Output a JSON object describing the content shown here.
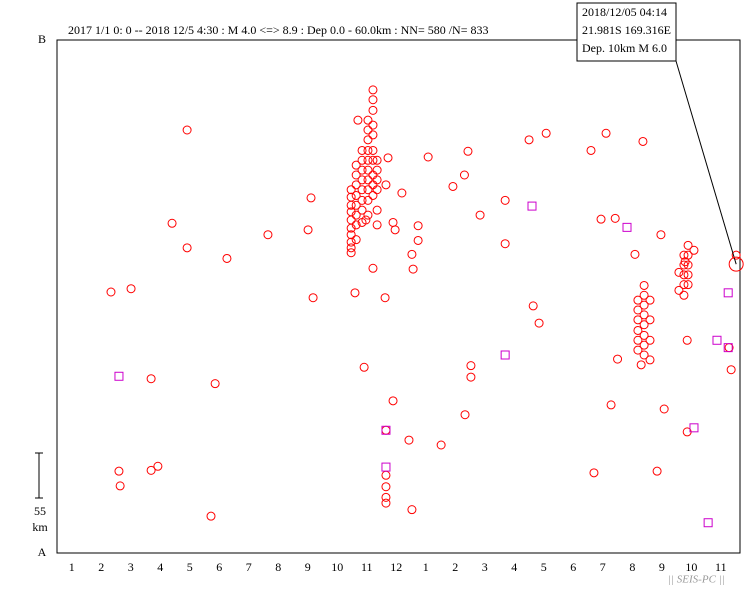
{
  "chart_data": {
    "type": "scatter",
    "title": "2017 1/1 0: 0 -- 2018 12/5 4:30  : M 4.0 <=> 8.9  :  Dep 0.0 - 60.0km :  NN= 580 /N= 833",
    "xlim": [
      0,
      23.15
    ],
    "ylim": [
      0,
      627
    ],
    "xticks": [
      {
        "value": 0.5,
        "label": "1"
      },
      {
        "value": 1.5,
        "label": "2"
      },
      {
        "value": 2.5,
        "label": "3"
      },
      {
        "value": 3.5,
        "label": "4"
      },
      {
        "value": 4.5,
        "label": "5"
      },
      {
        "value": 5.5,
        "label": "6"
      },
      {
        "value": 6.5,
        "label": "7"
      },
      {
        "value": 7.5,
        "label": "8"
      },
      {
        "value": 8.5,
        "label": "9"
      },
      {
        "value": 9.5,
        "label": "10"
      },
      {
        "value": 10.5,
        "label": "11"
      },
      {
        "value": 11.5,
        "label": "12"
      },
      {
        "value": 12.5,
        "label": "1"
      },
      {
        "value": 13.5,
        "label": "2"
      },
      {
        "value": 14.5,
        "label": "3"
      },
      {
        "value": 15.5,
        "label": "4"
      },
      {
        "value": 16.5,
        "label": "5"
      },
      {
        "value": 17.5,
        "label": "6"
      },
      {
        "value": 18.5,
        "label": "7"
      },
      {
        "value": 19.5,
        "label": "8"
      },
      {
        "value": 20.5,
        "label": "9"
      },
      {
        "value": 21.5,
        "label": "10"
      },
      {
        "value": 22.5,
        "label": "11"
      }
    ],
    "yticks": [
      {
        "value": 0,
        "label": "A"
      },
      {
        "value": 627,
        "label": "B"
      }
    ],
    "scale_bar": {
      "value": 55,
      "unit": "km"
    },
    "series": [
      {
        "marker": "circle",
        "color": "#ff0000",
        "x": [
          1.83,
          2.51,
          2.1,
          2.14,
          3.19,
          3.19,
          3.42,
          3.9,
          4.41,
          4.41,
          5.36,
          5.22,
          5.76,
          7.15,
          8.51,
          8.61,
          8.68,
          9.97,
          9.97,
          9.97,
          9.97,
          9.97,
          9.97,
          9.97,
          9.97,
          9.97,
          9.97,
          10.14,
          10.14,
          10.14,
          10.14,
          10.14,
          10.14,
          10.14,
          10.14,
          10.34,
          10.34,
          10.34,
          10.34,
          10.34,
          10.34,
          10.34,
          10.34,
          10.54,
          10.54,
          10.54,
          10.54,
          10.54,
          10.54,
          10.54,
          10.54,
          10.54,
          10.54,
          10.71,
          10.71,
          10.71,
          10.71,
          10.71,
          10.71,
          10.71,
          10.71,
          10.71,
          10.71,
          10.85,
          10.85,
          10.85,
          10.85,
          10.85,
          10.85,
          10.2,
          10.1,
          10.71,
          10.47,
          11.22,
          11.15,
          11.12,
          11.39,
          11.46,
          11.69,
          10.41,
          11.39,
          11.15,
          11.15,
          11.15,
          11.15,
          11.15,
          11.93,
          12.03,
          12.03,
          12.07,
          12.24,
          12.24,
          12.58,
          13.02,
          13.42,
          13.81,
          13.93,
          14.34,
          14.03,
          14.03,
          13.83,
          15.19,
          15.19,
          16.0,
          16.58,
          16.14,
          16.34,
          18.1,
          18.61,
          18.44,
          18.92,
          18.2,
          18.78,
          19.59,
          19.86,
          20.47,
          20.34,
          20.58,
          21.29,
          21.36,
          21.36,
          21.59,
          22.85,
          22.78,
          19.69,
          19.69,
          19.69,
          19.69,
          19.69,
          19.69,
          19.9,
          19.9,
          19.9,
          19.9,
          19.9,
          19.9,
          19.9,
          19.9,
          20.1,
          20.1,
          20.1,
          20.1,
          19.0,
          19.8,
          21.25,
          21.25,
          21.25,
          21.25,
          21.25,
          21.39,
          21.39,
          21.39,
          21.39,
          21.39,
          21.08,
          21.08,
          23.02
        ],
        "y": [
          319,
          323,
          100,
          82,
          213,
          101,
          106,
          403,
          517,
          373,
          207,
          45,
          360,
          389,
          395,
          434,
          312,
          444,
          435,
          425,
          417,
          407,
          397,
          389,
          380,
          373,
          367,
          474,
          462,
          450,
          437,
          425,
          413,
          401,
          383,
          492,
          480,
          468,
          456,
          444,
          431,
          419,
          404,
          529,
          517,
          505,
          492,
          480,
          468,
          456,
          444,
          431,
          413,
          566,
          554,
          541,
          523,
          511,
          492,
          480,
          462,
          450,
          437,
          480,
          468,
          456,
          444,
          419,
          401,
          529,
          318,
          348,
          407,
          483,
          450,
          312,
          404,
          395,
          440,
          227,
          186,
          95,
          81,
          68,
          61,
          150,
          138,
          53,
          365,
          347,
          382,
          400,
          484,
          132,
          448,
          462,
          491,
          413,
          229,
          215,
          169,
          431,
          378,
          505,
          513,
          302,
          281,
          492,
          513,
          408,
          409,
          98,
          181,
          365,
          503,
          389,
          100,
          176,
          356,
          260,
          148,
          370,
          224,
          251,
          309,
          297,
          285,
          272,
          260,
          248,
          327,
          315,
          303,
          291,
          279,
          266,
          254,
          242,
          309,
          285,
          260,
          236,
          237,
          230,
          364,
          352,
          340,
          328,
          315,
          376,
          364,
          352,
          340,
          328,
          343,
          321,
          364
        ]
      },
      {
        "marker": "square",
        "color": "#cc00cc",
        "x": [
          2.1,
          16.1,
          19.32,
          15.19,
          11.15,
          11.15,
          21.59,
          22.37,
          22.75,
          22.75,
          22.07
        ],
        "y": [
          216,
          424,
          398,
          242,
          150,
          105,
          153,
          260,
          318,
          251,
          37
        ]
      }
    ],
    "highlight": {
      "x": 23.02,
      "y": 353,
      "color": "#ff0000",
      "lines": [
        "2018/12/05 04:14",
        "21.981S   169.316E",
        "Dep. 10km    M 6.0"
      ]
    },
    "credit": "|| SEIS-PC ||"
  }
}
